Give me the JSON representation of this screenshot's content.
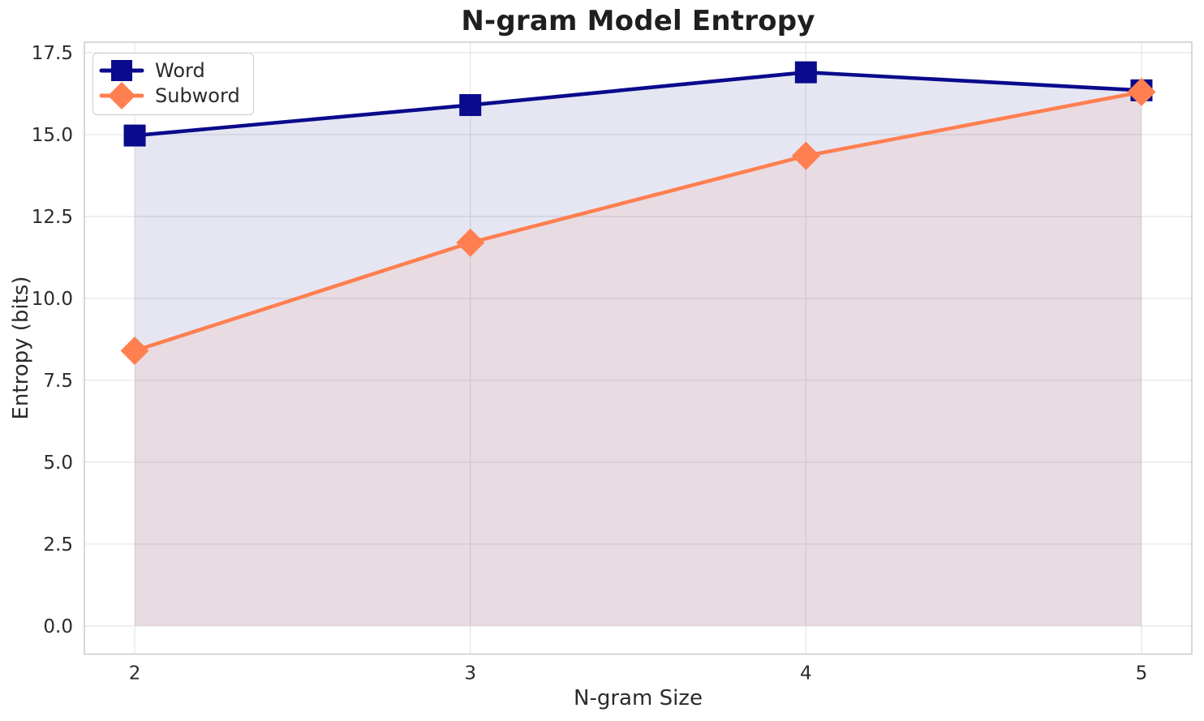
{
  "title": "N-gram Model Entropy",
  "chart_data": {
    "type": "line",
    "title": "N-gram Model Entropy",
    "xlabel": "N-gram Size",
    "ylabel": "Entropy (bits)",
    "x": [
      2,
      3,
      4,
      5
    ],
    "xtick_labels": [
      "2",
      "3",
      "4",
      "5"
    ],
    "yticks": [
      0.0,
      2.5,
      5.0,
      7.5,
      10.0,
      12.5,
      15.0,
      17.5
    ],
    "ytick_labels": [
      "0.0",
      "2.5",
      "5.0",
      "7.5",
      "10.0",
      "12.5",
      "15.0",
      "17.5"
    ],
    "series": [
      {
        "name": "Word",
        "values": [
          14.97,
          15.9,
          16.9,
          16.35
        ],
        "color": "#0a0a8c",
        "marker": "square",
        "fill_opacity": 0.1
      },
      {
        "name": "Subword",
        "values": [
          8.4,
          11.7,
          14.35,
          16.3
        ],
        "color": "#FF7F50",
        "marker": "diamond",
        "fill_opacity": 0.1
      }
    ],
    "fill_to_zero": true,
    "grid": true,
    "legend_position": "upper left",
    "xlim": [
      1.85,
      5.15
    ],
    "ylim": [
      -0.86,
      17.82
    ],
    "style": {
      "grid_color": "#e8e8e8",
      "spine_color": "#cccccc",
      "tick_label_color": "#2b2b2b",
      "line_width": 4.6,
      "tick_font_size": 23
    }
  }
}
